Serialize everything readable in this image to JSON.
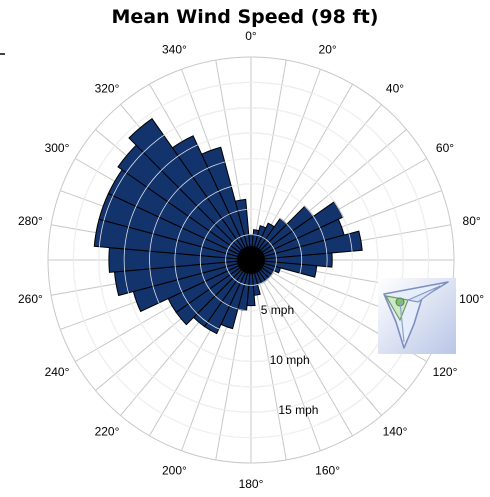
{
  "chart_data": {
    "type": "wind-rose",
    "title": "Mean Wind Speed (98 ft)",
    "direction_labels": [
      "0°",
      "20°",
      "40°",
      "60°",
      "80°",
      "100°",
      "120°",
      "140°",
      "160°",
      "180°",
      "200°",
      "220°",
      "240°",
      "260°",
      "280°",
      "300°",
      "320°",
      "340°"
    ],
    "ring_labels": [
      "5 mph",
      "10 mph",
      "15 mph"
    ],
    "ring_values": [
      5,
      10,
      15,
      20
    ],
    "r_max": 20,
    "sector_width_deg": 10,
    "sector_centers_deg": [
      0,
      10,
      20,
      30,
      40,
      50,
      60,
      70,
      80,
      90,
      100,
      110,
      120,
      130,
      140,
      150,
      160,
      170,
      180,
      190,
      200,
      210,
      220,
      230,
      240,
      250,
      260,
      270,
      280,
      290,
      300,
      310,
      320,
      330,
      340,
      350
    ],
    "mean_speed_mph": [
      2.5,
      3,
      3.5,
      4,
      5,
      7.5,
      10,
      9.5,
      11,
      8,
      6.5,
      3,
      2.5,
      2.5,
      2.5,
      2.5,
      2.5,
      3.5,
      4.5,
      5,
      7,
      8,
      8,
      9,
      9,
      12,
      13.5,
      14,
      15.5,
      15.5,
      15.5,
      16,
      17,
      13.5,
      11.5,
      6
    ],
    "bar_color": "#12336b",
    "bar_edge_color": "#000000",
    "grid_color": "#c8c8c8",
    "grid_highlight_color": "#ffffff"
  },
  "logo": {
    "icon": "glider-logo-icon"
  }
}
